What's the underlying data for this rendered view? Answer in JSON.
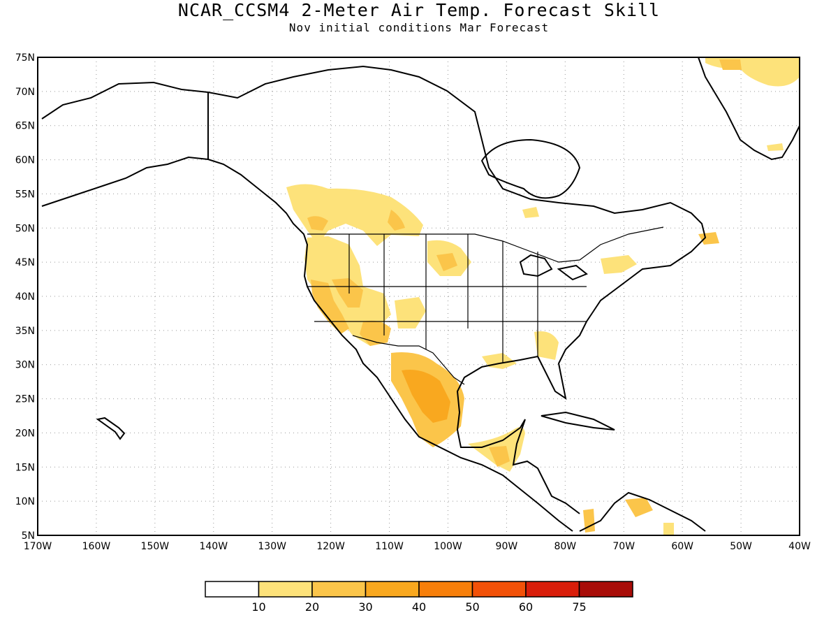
{
  "title": "NCAR_CCSM4 2-Meter Air Temp. Forecast Skill",
  "subtitle": "Nov initial conditions  Mar Forecast",
  "map": {
    "lat_labels": [
      "75N",
      "70N",
      "65N",
      "60N",
      "55N",
      "50N",
      "45N",
      "40N",
      "35N",
      "30N",
      "25N",
      "20N",
      "15N",
      "10N",
      "5N"
    ],
    "lon_labels": [
      "170W",
      "160W",
      "150W",
      "140W",
      "130W",
      "120W",
      "110W",
      "100W",
      "90W",
      "80W",
      "70W",
      "60W",
      "50W",
      "40W"
    ],
    "lat_range": [
      5,
      75
    ],
    "lon_range": [
      -170,
      -40
    ],
    "gridlines": "dotted"
  },
  "colorbar": {
    "labels": [
      "10",
      "20",
      "30",
      "40",
      "50",
      "60",
      "75"
    ],
    "colors": [
      "#ffffff",
      "#fde27a",
      "#fbc54a",
      "#f9a81f",
      "#f77f0a",
      "#f25108",
      "#d91e0a",
      "#a80c08"
    ]
  }
}
